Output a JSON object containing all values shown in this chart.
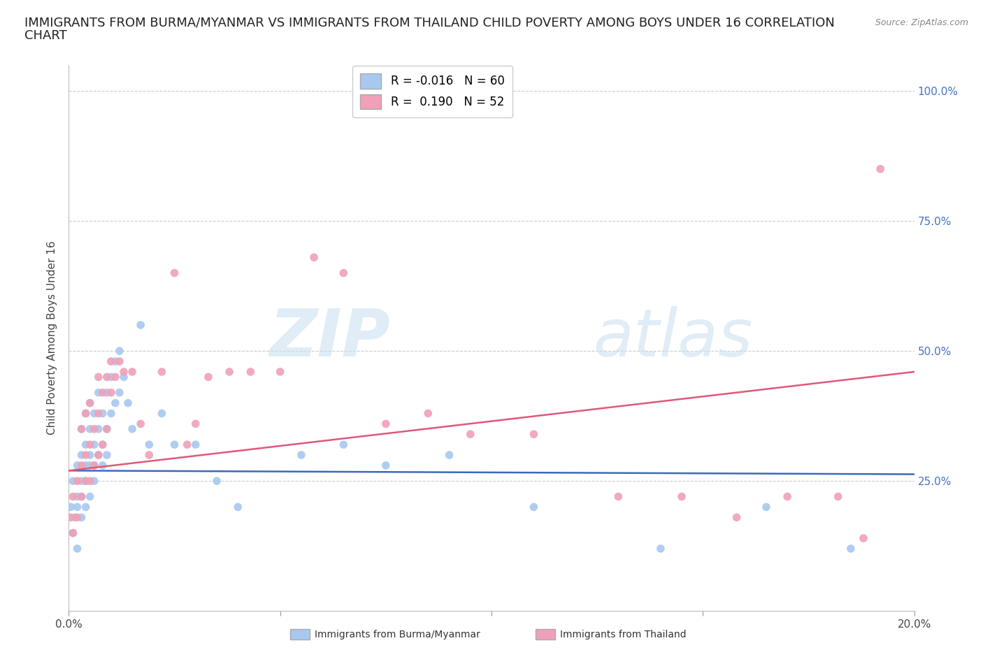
{
  "title_line1": "IMMIGRANTS FROM BURMA/MYANMAR VS IMMIGRANTS FROM THAILAND CHILD POVERTY AMONG BOYS UNDER 16 CORRELATION",
  "title_line2": "CHART",
  "source_text": "Source: ZipAtlas.com",
  "ylabel": "Child Poverty Among Boys Under 16",
  "xlim": [
    0.0,
    0.2
  ],
  "ylim": [
    0.0,
    1.05
  ],
  "yticks": [
    0.0,
    0.25,
    0.5,
    0.75,
    1.0
  ],
  "ytick_labels_right": [
    "",
    "25.0%",
    "50.0%",
    "75.0%",
    "100.0%"
  ],
  "xtick_positions": [
    0.0,
    0.05,
    0.1,
    0.15,
    0.2
  ],
  "xtick_labels": [
    "0.0%",
    "",
    "",
    "",
    "20.0%"
  ],
  "watermark_zip": "ZIP",
  "watermark_atlas": "atlas",
  "color_burma": "#a8c8f0",
  "color_thailand": "#f0a0b8",
  "line_color_burma": "#3a6abf",
  "line_color_thailand": "#e05878",
  "background_color": "#ffffff",
  "grid_color": "#cccccc",
  "title_fontsize": 13,
  "axis_label_fontsize": 11,
  "tick_fontsize": 11,
  "legend_fontsize": 12,
  "r_burma": -0.016,
  "n_burma": 60,
  "r_thailand": 0.19,
  "n_thailand": 52,
  "scatter_burma_x": [
    0.0005,
    0.001,
    0.001,
    0.0015,
    0.002,
    0.002,
    0.002,
    0.002,
    0.003,
    0.003,
    0.003,
    0.003,
    0.003,
    0.004,
    0.004,
    0.004,
    0.004,
    0.004,
    0.005,
    0.005,
    0.005,
    0.005,
    0.005,
    0.006,
    0.006,
    0.006,
    0.006,
    0.007,
    0.007,
    0.007,
    0.008,
    0.008,
    0.008,
    0.009,
    0.009,
    0.009,
    0.01,
    0.01,
    0.011,
    0.011,
    0.012,
    0.012,
    0.013,
    0.014,
    0.015,
    0.017,
    0.019,
    0.022,
    0.025,
    0.03,
    0.035,
    0.04,
    0.055,
    0.065,
    0.075,
    0.09,
    0.11,
    0.14,
    0.165,
    0.185
  ],
  "scatter_burma_y": [
    0.2,
    0.15,
    0.25,
    0.18,
    0.12,
    0.2,
    0.22,
    0.28,
    0.18,
    0.22,
    0.25,
    0.3,
    0.35,
    0.2,
    0.25,
    0.28,
    0.32,
    0.38,
    0.22,
    0.28,
    0.3,
    0.35,
    0.4,
    0.25,
    0.28,
    0.32,
    0.38,
    0.3,
    0.35,
    0.42,
    0.28,
    0.32,
    0.38,
    0.3,
    0.35,
    0.42,
    0.38,
    0.45,
    0.4,
    0.48,
    0.42,
    0.5,
    0.45,
    0.4,
    0.35,
    0.55,
    0.32,
    0.38,
    0.32,
    0.32,
    0.25,
    0.2,
    0.3,
    0.32,
    0.28,
    0.3,
    0.2,
    0.12,
    0.2,
    0.12
  ],
  "scatter_thailand_x": [
    0.0005,
    0.001,
    0.001,
    0.002,
    0.002,
    0.003,
    0.003,
    0.003,
    0.004,
    0.004,
    0.004,
    0.005,
    0.005,
    0.005,
    0.006,
    0.006,
    0.007,
    0.007,
    0.007,
    0.008,
    0.008,
    0.009,
    0.009,
    0.01,
    0.01,
    0.011,
    0.012,
    0.013,
    0.015,
    0.017,
    0.019,
    0.022,
    0.025,
    0.028,
    0.03,
    0.033,
    0.038,
    0.043,
    0.05,
    0.058,
    0.065,
    0.075,
    0.085,
    0.095,
    0.11,
    0.13,
    0.145,
    0.158,
    0.17,
    0.182,
    0.188,
    0.192
  ],
  "scatter_thailand_y": [
    0.18,
    0.15,
    0.22,
    0.18,
    0.25,
    0.22,
    0.28,
    0.35,
    0.25,
    0.3,
    0.38,
    0.25,
    0.32,
    0.4,
    0.28,
    0.35,
    0.3,
    0.38,
    0.45,
    0.32,
    0.42,
    0.35,
    0.45,
    0.42,
    0.48,
    0.45,
    0.48,
    0.46,
    0.46,
    0.36,
    0.3,
    0.46,
    0.65,
    0.32,
    0.36,
    0.45,
    0.46,
    0.46,
    0.46,
    0.68,
    0.65,
    0.36,
    0.38,
    0.34,
    0.34,
    0.22,
    0.22,
    0.18,
    0.22,
    0.22,
    0.14,
    0.85
  ]
}
